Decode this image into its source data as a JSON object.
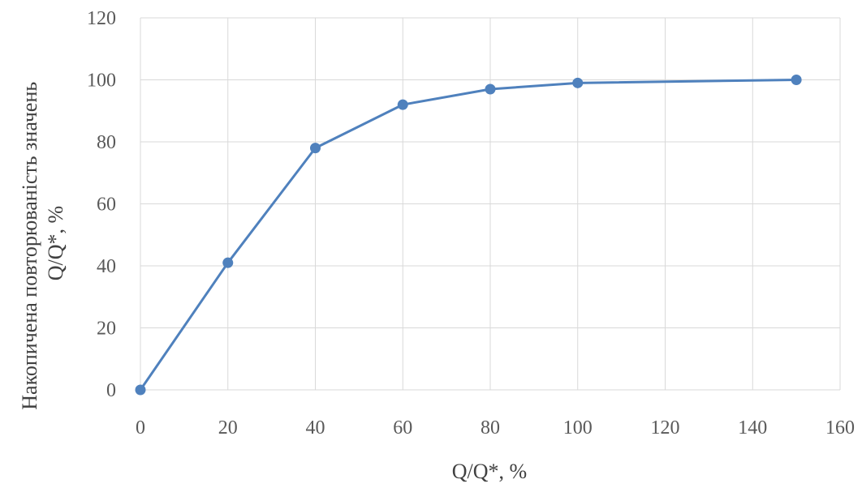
{
  "chart_data": {
    "type": "line",
    "title": "",
    "xlabel": "Q/Q*, %",
    "ylabel_lines": [
      "Накопичена повторюваність значень",
      "Q/Q*, %"
    ],
    "xlim": [
      0,
      160
    ],
    "ylim": [
      0,
      120
    ],
    "x_ticks": [
      0,
      20,
      40,
      60,
      80,
      100,
      120,
      140,
      160
    ],
    "y_ticks": [
      0,
      20,
      40,
      60,
      80,
      100,
      120
    ],
    "grid": true,
    "legend": "none",
    "series": [
      {
        "color": "#4f81bd",
        "x": [
          0,
          20,
          40,
          60,
          80,
          100,
          150
        ],
        "y": [
          0,
          41,
          78,
          92,
          97,
          99,
          100
        ]
      }
    ]
  }
}
